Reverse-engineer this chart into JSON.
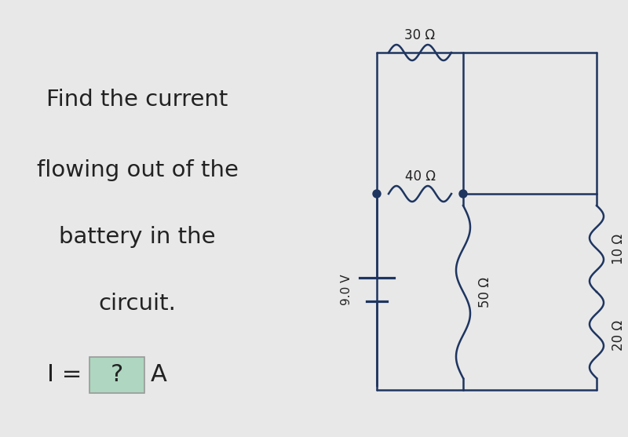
{
  "background_color": "#e8e8e8",
  "text_color": "#222222",
  "title_lines": [
    "Find the current",
    "flowing out of the",
    "battery in the",
    "circuit."
  ],
  "title_fontsize": 21,
  "formula_fontsize": 22,
  "box_color": "#aed6c0",
  "voltage": "9.0 V",
  "r1": "30 Ω",
  "r2": "40 Ω",
  "r3": "50 Ω",
  "r4": "20 Ω",
  "r5": "10 Ω",
  "wire_color": "#1e3560",
  "wire_lw": 1.8,
  "dot_color": "#1e3560",
  "label_fontsize": 12
}
